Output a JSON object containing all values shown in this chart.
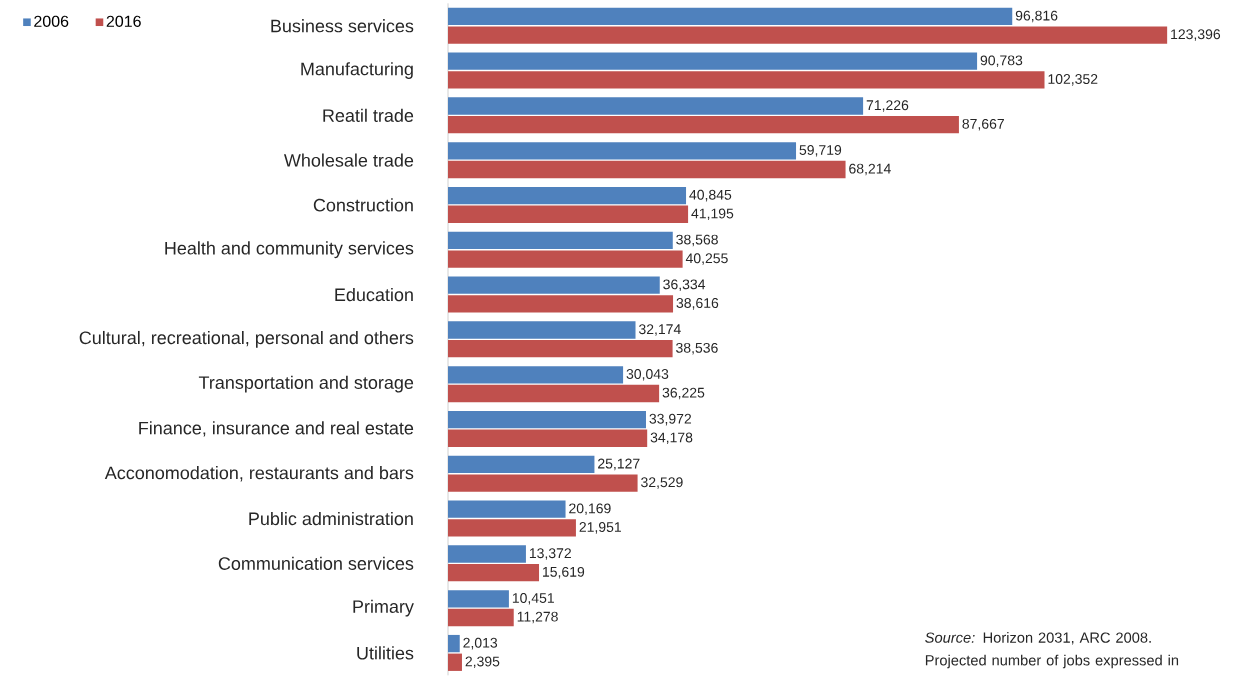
{
  "chart_data": {
    "type": "bar",
    "orientation": "horizontal",
    "legend": "top left",
    "categories": [
      "Business services",
      "Manufacturing",
      "Reatil trade",
      "Wholesale trade",
      "Construction",
      "Health and community services",
      "Education",
      "Cultural, recreational, personal and others",
      "Transportation and storage",
      "Finance, insurance and real estate",
      "Acconomodation, restaurants and bars",
      "Public administration",
      "Communication services",
      "Primary",
      "Utilities"
    ],
    "series": [
      {
        "name": "2006",
        "color": "#4f81bd",
        "values": [
          96816,
          90783,
          71226,
          59719,
          40845,
          38568,
          36334,
          32174,
          30043,
          33972,
          25127,
          20169,
          13372,
          10451,
          2013
        ],
        "value_labels": [
          "96,816",
          "90,783",
          "71,226",
          "59,719",
          "40,845",
          "38,568",
          "36,334",
          "32,174",
          "30,043",
          "33,972",
          "25,127",
          "20,169",
          "13,372",
          "10,451",
          "2,013"
        ]
      },
      {
        "name": "2016",
        "color": "#c0504d",
        "values": [
          123396,
          102352,
          87667,
          68214,
          41195,
          40255,
          38616,
          38536,
          36225,
          34178,
          32529,
          21951,
          15619,
          11278,
          2395
        ],
        "value_labels": [
          "123,396",
          "102,352",
          "87,667",
          "68,214",
          "41,195",
          "40,255",
          "38,616",
          "38,536",
          "36,225",
          "34,178",
          "32,529",
          "21,951",
          "15,619",
          "11,278",
          "2,395"
        ]
      }
    ],
    "annotations": [
      "*Source:*  Horizon 2031, ARC 2008. Projected number of jobs expressed in"
    ]
  }
}
